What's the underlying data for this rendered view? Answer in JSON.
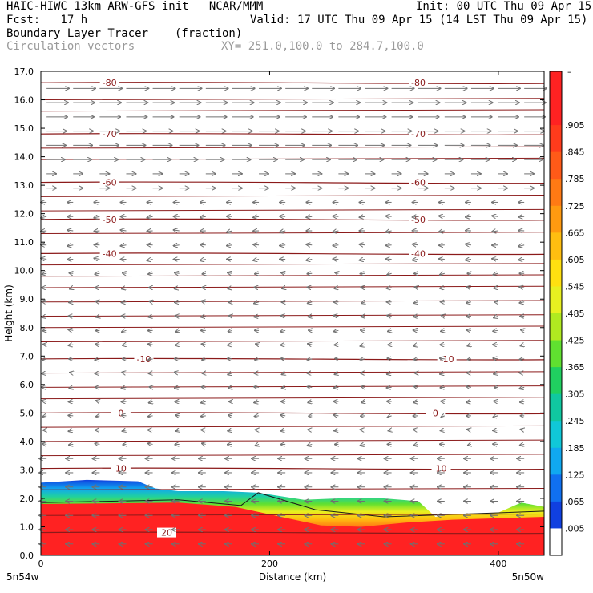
{
  "header": {
    "line1_left": "HAIC-HIWC 13km ARW-GFS init   NCAR/MMM",
    "line1_right": "Init: 00 UTC Thu 09 Apr 15",
    "line2_left": "Fcst:   17 h",
    "line2_right": "Valid: 17 UTC Thu 09 Apr 15 (14 LST Thu 09 Apr 15)",
    "line3_left": "Boundary Layer Tracer",
    "line3_mid": "(fraction)",
    "line4_left": "Circulation vectors",
    "line4_mid": "XY= 251.0,100.0 to 284.7,100.0"
  },
  "chart_data": {
    "type": "heatmap",
    "ylabel": "Height (km)",
    "xlabel": "Distance (km)",
    "xlim": [
      0,
      440
    ],
    "ylim": [
      0,
      17
    ],
    "x_ticks": [
      0,
      200,
      400
    ],
    "x_tick_labels": [
      "0",
      "200",
      "400"
    ],
    "y_ticks": [
      0,
      1,
      2,
      3,
      4,
      5,
      6,
      7,
      8,
      9,
      10,
      11,
      12,
      13,
      14,
      15,
      16,
      17
    ],
    "y_tick_labels": [
      "0.0",
      "1.0",
      "2.0",
      "3.0",
      "4.0",
      "5.0",
      "6.0",
      "7.0",
      "8.0",
      "9.0",
      "10.0",
      "11.0",
      "12.0",
      "13.0",
      "14.0",
      "15.0",
      "16.0",
      "17.0"
    ],
    "endpoint_labels": {
      "left": "5n54w",
      "right": "5n50w"
    },
    "colorbar": {
      "top_label": "–",
      "labels": [
        ".905",
        ".845",
        ".785",
        ".725",
        ".665",
        ".605",
        ".545",
        ".485",
        ".425",
        ".365",
        ".305",
        ".245",
        ".185",
        ".125",
        ".065",
        ".005"
      ],
      "colors": [
        "#ff2222",
        "#ff2222",
        "#ff3b1c",
        "#ff5a18",
        "#ff7a14",
        "#ff9a10",
        "#ffbe10",
        "#ffe010",
        "#e8f020",
        "#b0ea20",
        "#60e030",
        "#20d060",
        "#10c8a0",
        "#10c8d8",
        "#10a8f0",
        "#1070f0",
        "#1040e0",
        "#ffffff"
      ]
    },
    "temperature_contours": [
      {
        "label": "-80",
        "z": 16.6
      },
      {
        "label": "-70",
        "z": 14.8
      },
      {
        "label": "-60",
        "z": 13.1
      },
      {
        "label": "-50",
        "z": 11.8
      },
      {
        "label": "-40",
        "z": 10.6
      },
      {
        "label": "-10",
        "z": 6.9
      },
      {
        "label": "0",
        "z": 5.0
      },
      {
        "label": "10",
        "z": 3.05
      },
      {
        "label": "20",
        "z": 0.8
      }
    ],
    "extra_contour_levels": [
      16.0,
      15.6,
      14.3,
      13.9,
      12.6,
      12.1,
      11.3,
      10.2,
      9.8,
      9.4,
      8.9,
      8.4,
      8.0,
      7.5,
      6.4,
      5.9,
      5.5,
      4.5,
      4.0,
      3.5,
      2.3,
      1.4
    ],
    "tracer_top_km": [
      {
        "x": 0,
        "z": 2.55
      },
      {
        "x": 40,
        "z": 2.65
      },
      {
        "x": 85,
        "z": 2.6
      },
      {
        "x": 100,
        "z": 2.35
      },
      {
        "x": 120,
        "z": 2.25
      },
      {
        "x": 160,
        "z": 2.25
      },
      {
        "x": 190,
        "z": 2.2
      },
      {
        "x": 230,
        "z": 1.95
      },
      {
        "x": 260,
        "z": 2.0
      },
      {
        "x": 300,
        "z": 2.0
      },
      {
        "x": 330,
        "z": 1.9
      },
      {
        "x": 345,
        "z": 1.35
      },
      {
        "x": 360,
        "z": 1.45
      },
      {
        "x": 400,
        "z": 1.5
      },
      {
        "x": 420,
        "z": 1.85
      },
      {
        "x": 440,
        "z": 1.7
      }
    ],
    "tracer_core_km": [
      {
        "x": 0,
        "z": 1.8
      },
      {
        "x": 120,
        "z": 1.85
      },
      {
        "x": 170,
        "z": 1.7
      },
      {
        "x": 210,
        "z": 1.35
      },
      {
        "x": 245,
        "z": 1.05
      },
      {
        "x": 280,
        "z": 1.0
      },
      {
        "x": 320,
        "z": 1.15
      },
      {
        "x": 360,
        "z": 1.25
      },
      {
        "x": 400,
        "z": 1.3
      },
      {
        "x": 440,
        "z": 1.35
      }
    ]
  }
}
